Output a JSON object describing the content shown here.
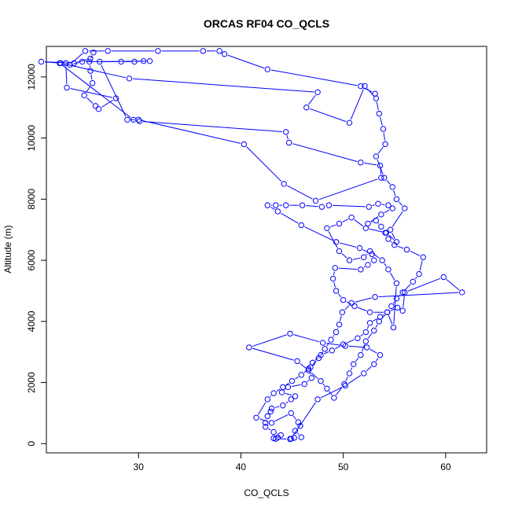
{
  "chart_data": {
    "type": "line",
    "title": "ORCAS RF04 CO_QCLS",
    "xlabel": "CO_QCLS",
    "ylabel": "Altitude (m)",
    "xlim": [
      21,
      64
    ],
    "ylim": [
      -300,
      13000
    ],
    "xticks": [
      30,
      40,
      50,
      60
    ],
    "yticks": [
      0,
      2000,
      4000,
      6000,
      8000,
      10000,
      12000
    ],
    "grid": false,
    "legend": "none",
    "series_color": "#0000ff",
    "marker": "open-circle",
    "points": [
      [
        44.8,
        150
      ],
      [
        43.4,
        160
      ],
      [
        43.2,
        180
      ],
      [
        43.6,
        200
      ],
      [
        43.9,
        280
      ],
      [
        43.2,
        380
      ],
      [
        42.4,
        550
      ],
      [
        42.4,
        680
      ],
      [
        42.6,
        900
      ],
      [
        42.9,
        1050
      ],
      [
        43.0,
        1150
      ],
      [
        44.1,
        1250
      ],
      [
        44.9,
        1450
      ],
      [
        45.3,
        1550
      ],
      [
        44.0,
        1680
      ],
      [
        44.6,
        1850
      ],
      [
        46.2,
        1950
      ],
      [
        46.9,
        2150
      ],
      [
        46.6,
        2450
      ],
      [
        47.0,
        2650
      ],
      [
        47.8,
        2900
      ],
      [
        48.9,
        3050
      ],
      [
        50.0,
        3250
      ],
      [
        51.4,
        3450
      ],
      [
        52.2,
        3650
      ],
      [
        52.6,
        3950
      ],
      [
        53.6,
        4150
      ],
      [
        54.3,
        4300
      ],
      [
        54.7,
        4500
      ],
      [
        55.2,
        4750
      ],
      [
        55.8,
        4950
      ],
      [
        56.8,
        5300
      ],
      [
        57.4,
        5550
      ],
      [
        57.8,
        6100
      ],
      [
        56.2,
        6350
      ],
      [
        55.0,
        6500
      ],
      [
        54.4,
        6700
      ],
      [
        54.1,
        6900
      ],
      [
        53.7,
        7100
      ],
      [
        53.2,
        7300
      ],
      [
        52.4,
        7200
      ],
      [
        53.7,
        7500
      ],
      [
        54.8,
        7700
      ],
      [
        54.4,
        7800
      ],
      [
        53.4,
        7850
      ],
      [
        52.5,
        7750
      ],
      [
        48.6,
        7800
      ],
      [
        47.9,
        7750
      ],
      [
        46.0,
        7800
      ],
      [
        44.4,
        7800
      ],
      [
        43.4,
        7800
      ],
      [
        42.6,
        7800
      ],
      [
        43.6,
        7600
      ],
      [
        45.9,
        7150
      ],
      [
        49.3,
        6600
      ],
      [
        51.6,
        6400
      ],
      [
        52.8,
        6200
      ],
      [
        53.0,
        6000
      ],
      [
        52.4,
        5850
      ],
      [
        51.7,
        5700
      ],
      [
        49.2,
        5750
      ],
      [
        49.0,
        5400
      ],
      [
        49.3,
        5000
      ],
      [
        50.0,
        4700
      ],
      [
        51.1,
        4500
      ],
      [
        52.6,
        4300
      ],
      [
        54.3,
        4300
      ],
      [
        55.3,
        4450
      ],
      [
        55.8,
        4350
      ],
      [
        56.0,
        4950
      ],
      [
        59.8,
        5450
      ],
      [
        61.6,
        4950
      ],
      [
        53.1,
        4800
      ],
      [
        50.8,
        4600
      ],
      [
        49.9,
        4300
      ],
      [
        49.6,
        3900
      ],
      [
        49.3,
        3650
      ],
      [
        48.8,
        3400
      ],
      [
        48.2,
        3100
      ],
      [
        47.6,
        2800
      ],
      [
        46.8,
        2500
      ],
      [
        45.9,
        2250
      ],
      [
        45.0,
        2050
      ],
      [
        44.1,
        1850
      ],
      [
        43.2,
        1650
      ],
      [
        42.6,
        1450
      ],
      [
        41.5,
        850
      ],
      [
        43.0,
        680
      ],
      [
        44.9,
        1000
      ],
      [
        45.6,
        700
      ],
      [
        45.8,
        580
      ],
      [
        45.3,
        420
      ],
      [
        45.9,
        210
      ],
      [
        45.2,
        190
      ],
      [
        44.9,
        160
      ],
      [
        47.5,
        1450
      ],
      [
        50.2,
        1900
      ],
      [
        52.0,
        2300
      ],
      [
        53.0,
        2600
      ],
      [
        53.6,
        2900
      ],
      [
        52.3,
        3150
      ],
      [
        50.2,
        3200
      ],
      [
        48.0,
        3300
      ],
      [
        44.8,
        3600
      ],
      [
        40.8,
        3150
      ],
      [
        45.5,
        2700
      ],
      [
        46.6,
        2400
      ],
      [
        47.8,
        2050
      ],
      [
        48.4,
        1800
      ],
      [
        49.1,
        1500
      ],
      [
        50.1,
        1950
      ],
      [
        50.6,
        2300
      ],
      [
        51.0,
        2600
      ],
      [
        51.7,
        2900
      ],
      [
        52.2,
        3350
      ],
      [
        53.0,
        3700
      ],
      [
        53.5,
        4000
      ],
      [
        54.3,
        4300
      ],
      [
        54.9,
        3800
      ],
      [
        55.2,
        5250
      ],
      [
        54.4,
        5700
      ],
      [
        53.8,
        6000
      ],
      [
        52.6,
        6300
      ],
      [
        52.0,
        6100
      ],
      [
        50.6,
        6000
      ],
      [
        49.6,
        6300
      ],
      [
        48.4,
        7050
      ],
      [
        49.6,
        7200
      ],
      [
        50.8,
        7400
      ],
      [
        52.2,
        7050
      ],
      [
        54.2,
        6900
      ],
      [
        55.2,
        6600
      ],
      [
        54.6,
        7000
      ],
      [
        56.0,
        7700
      ],
      [
        55.2,
        8000
      ],
      [
        54.8,
        8400
      ],
      [
        54.0,
        8700
      ],
      [
        53.2,
        9400
      ],
      [
        54.1,
        9800
      ],
      [
        53.9,
        10300
      ],
      [
        53.5,
        10800
      ],
      [
        53.2,
        11300
      ],
      [
        52.1,
        11700
      ],
      [
        50.6,
        10500
      ],
      [
        46.4,
        11000
      ],
      [
        47.5,
        11500
      ],
      [
        29.1,
        11950
      ],
      [
        22.4,
        12450
      ],
      [
        20.5,
        12500
      ],
      [
        23.7,
        12450
      ],
      [
        25.3,
        12600
      ],
      [
        25.6,
        12800
      ],
      [
        25.2,
        12500
      ],
      [
        25.3,
        12200
      ],
      [
        25.5,
        11800
      ],
      [
        24.7,
        11400
      ],
      [
        25.8,
        11050
      ],
      [
        26.1,
        10950
      ],
      [
        27.8,
        11300
      ],
      [
        23.0,
        11650
      ],
      [
        22.9,
        12450
      ],
      [
        22.3,
        12450
      ],
      [
        29.5,
        10600
      ],
      [
        30.1,
        10550
      ],
      [
        44.4,
        10200
      ],
      [
        44.7,
        9850
      ],
      [
        51.7,
        9200
      ],
      [
        53.6,
        9100
      ],
      [
        53.7,
        8700
      ],
      [
        47.3,
        7950
      ],
      [
        44.2,
        8500
      ],
      [
        40.3,
        9800
      ],
      [
        30.0,
        10600
      ],
      [
        28.9,
        10600
      ],
      [
        26.2,
        12500
      ],
      [
        31.1,
        12520
      ],
      [
        30.5,
        12520
      ],
      [
        29.6,
        12500
      ],
      [
        28.3,
        12500
      ],
      [
        24.5,
        12500
      ],
      [
        23.3,
        12400
      ],
      [
        24.8,
        12850
      ],
      [
        27.0,
        12850
      ],
      [
        31.9,
        12850
      ],
      [
        36.3,
        12850
      ],
      [
        37.9,
        12850
      ],
      [
        38.4,
        12750
      ],
      [
        42.6,
        12250
      ],
      [
        51.7,
        11700
      ],
      [
        53.1,
        11450
      ]
    ]
  }
}
